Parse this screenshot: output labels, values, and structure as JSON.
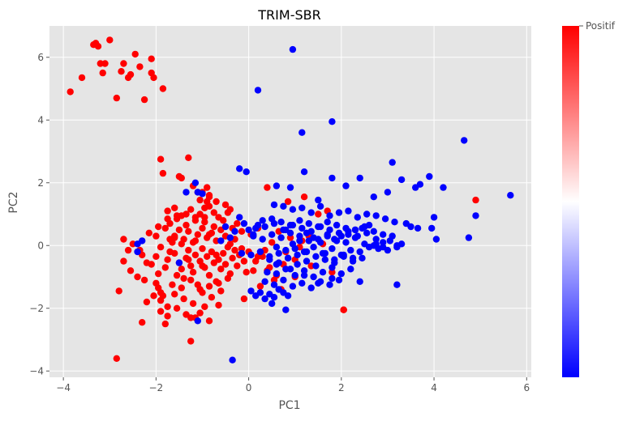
{
  "chart_data": {
    "type": "scatter",
    "title": "TRIM-SBR",
    "xlabel": "PC1",
    "ylabel": "PC2",
    "xlim": [
      -4.3,
      6.1
    ],
    "ylim": [
      -4.2,
      7.0
    ],
    "xticks": [
      -4,
      -2,
      0,
      2,
      4,
      6
    ],
    "yticks": [
      -4,
      -2,
      0,
      2,
      4,
      6
    ],
    "grid": true,
    "colors": {
      "positive": "#ff0000",
      "negative": "#0000ff"
    },
    "colorbar": {
      "label": "Positif",
      "position": "right"
    },
    "series": [
      {
        "color": "#ff0000",
        "x": [
          -3.85,
          -3.6,
          -3.35,
          -3.3,
          -3.25,
          -3.2,
          -3.1,
          -3.15,
          -3.0,
          -2.85,
          -2.75,
          -2.7,
          -2.6,
          -2.55,
          -2.45,
          -2.35,
          -2.25,
          -2.1,
          -2.1,
          -2.05,
          -1.85,
          -2.85,
          -2.3,
          -1.9,
          -1.85,
          -1.8,
          -1.5,
          -1.45,
          -1.3,
          -1.2,
          -1.25,
          -1.1,
          -0.9,
          -0.85,
          -0.7,
          -0.5,
          -0.4,
          0.4,
          0.85,
          1.0,
          1.2,
          1.5,
          1.7,
          2.05,
          2.05,
          4.9,
          1.8,
          -1.0,
          -0.85,
          -0.9,
          -1.05,
          -0.95,
          -2.6,
          -2.7,
          -2.55,
          -2.8,
          -2.4,
          -2.3,
          -2.2,
          -2.1,
          -2.0,
          -1.95,
          -2.25,
          -2.0,
          -1.95,
          -1.9,
          -1.85,
          -1.8,
          -1.75,
          -1.7,
          -1.65,
          -1.6,
          -1.55,
          -1.5,
          -1.45,
          -1.4,
          -1.35,
          -1.3,
          -1.25,
          -1.2,
          -1.15,
          -1.1,
          -1.05,
          -1.0,
          -0.95,
          -0.9,
          -0.85,
          -0.8,
          -0.75,
          -0.7,
          -0.65,
          -0.6,
          -0.55,
          -0.5,
          -0.45,
          -0.4,
          -0.35,
          -0.3,
          -0.25,
          -0.2,
          -0.15,
          -0.1,
          0.0,
          0.1,
          0.2,
          -1.6,
          -1.5,
          -1.4,
          -1.3,
          -1.2,
          -1.1,
          -1.0,
          -0.9,
          -0.8,
          -0.7,
          -0.6,
          -0.5,
          -0.4,
          -0.3,
          -1.7,
          -1.55,
          -1.35,
          -1.15,
          -0.95,
          -0.75,
          -0.55,
          -0.35,
          -0.15,
          -1.75,
          -1.6,
          -1.45,
          -1.25,
          -1.05,
          -0.85,
          -0.65,
          -0.45,
          -0.25,
          -2.0,
          -1.9,
          -1.8,
          -1.7,
          -1.6,
          -1.45,
          -1.3,
          -1.15,
          -1.0,
          -0.85,
          -0.7,
          -2.2,
          -2.05,
          -1.9,
          -1.75,
          -1.6,
          -1.4,
          -1.2,
          -1.0,
          -0.8,
          -0.6,
          -1.9,
          -1.75,
          -1.55,
          -1.35,
          -1.15,
          -0.95,
          -2.7,
          -2.5,
          -2.35,
          -2.15,
          -1.95,
          -1.75,
          -1.65,
          -1.45,
          -1.25,
          -1.05,
          -0.85,
          -0.65,
          -0.45,
          -1.55,
          -1.35,
          -1.15,
          -0.95,
          -0.75,
          -1.25,
          -1.05,
          -0.85,
          -0.65,
          0.3,
          0.5,
          0.65,
          0.75,
          0.9,
          1.1,
          1.3,
          1.6,
          0.4,
          0.55,
          0.7,
          0.2,
          0.35,
          0.15,
          0.05,
          -0.1,
          -0.05,
          0.25,
          0.45,
          0.6,
          0.8,
          1.0,
          1.15,
          1.35
        ],
        "y": [
          4.9,
          5.35,
          6.4,
          6.45,
          6.35,
          5.8,
          5.8,
          5.5,
          6.55,
          4.7,
          5.55,
          5.8,
          5.35,
          5.45,
          6.1,
          5.7,
          4.65,
          5.95,
          5.5,
          5.35,
          5.0,
          -3.6,
          -2.45,
          2.75,
          2.3,
          -2.5,
          2.2,
          2.15,
          2.8,
          1.9,
          -3.05,
          1.7,
          1.85,
          1.6,
          1.4,
          1.3,
          1.15,
          1.85,
          1.4,
          -1.0,
          1.55,
          1.0,
          1.1,
          -2.05,
          -2.05,
          1.45,
          -0.85,
          1.7,
          1.55,
          1.4,
          1.45,
          1.2,
          -0.15,
          -0.5,
          -0.8,
          -1.45,
          -1.0,
          -0.3,
          -0.55,
          -0.6,
          -0.35,
          -0.9,
          -1.1,
          -1.2,
          -1.35,
          -1.5,
          -1.6,
          -0.7,
          -0.45,
          -0.2,
          0.1,
          0.25,
          -0.95,
          -0.55,
          -0.75,
          -1.05,
          -0.4,
          -0.15,
          -0.65,
          -0.85,
          -0.3,
          -1.25,
          -0.5,
          -0.1,
          -0.7,
          -0.35,
          -0.95,
          -0.2,
          -0.55,
          -1.15,
          -0.45,
          -0.75,
          -0.25,
          -0.6,
          -0.05,
          -0.9,
          -0.4,
          -0.15,
          -0.65,
          -0.3,
          -0.1,
          -0.5,
          -0.2,
          -0.8,
          -0.35,
          0.3,
          0.5,
          0.2,
          0.45,
          0.1,
          0.35,
          0.55,
          0.25,
          0.4,
          0.15,
          0.5,
          0.3,
          0.05,
          0.2,
          0.7,
          0.85,
          0.65,
          0.9,
          0.75,
          0.6,
          0.8,
          0.55,
          0.45,
          1.1,
          1.2,
          0.95,
          1.15,
          1.0,
          1.25,
          0.9,
          1.05,
          0.7,
          0.3,
          -0.05,
          0.55,
          0.2,
          -0.25,
          0.05,
          -0.45,
          0.15,
          -0.65,
          0.35,
          -0.3,
          -1.8,
          -1.6,
          -1.75,
          -1.95,
          -1.55,
          -1.7,
          -1.85,
          -1.5,
          -1.65,
          -1.45,
          -2.1,
          -2.25,
          -2.0,
          -2.2,
          -2.3,
          -1.95,
          0.2,
          0.05,
          -0.15,
          0.4,
          0.6,
          0.85,
          -1.25,
          -1.35,
          -1.1,
          -1.4,
          -1.3,
          -1.2,
          -1.05,
          0.95,
          1.0,
          0.8,
          0.9,
          1.05,
          -2.3,
          -2.15,
          -2.4,
          -1.9,
          -0.35,
          0.1,
          0.45,
          -0.6,
          0.25,
          -0.05,
          0.3,
          0.05,
          -0.8,
          -1.1,
          -1.4,
          0.55,
          -0.15,
          -0.5,
          0.35,
          -1.7,
          -0.85,
          -1.3,
          -0.7,
          -0.95,
          -0.2,
          -0.45,
          0.15,
          -0.65
        ]
      },
      {
        "color": "#0000ff",
        "x": [
          0.95,
          0.2,
          1.15,
          1.8,
          3.1,
          4.65,
          5.65,
          4.9,
          4.75,
          4.05,
          4.0,
          3.95,
          3.7,
          3.5,
          3.3,
          3.2,
          3.05,
          2.9,
          2.75,
          2.6,
          2.45,
          2.3,
          2.15,
          2.0,
          1.85,
          1.7,
          1.55,
          1.4,
          1.25,
          1.1,
          0.95,
          0.8,
          -0.35,
          -0.2,
          -0.05,
          -1.0,
          -1.15,
          -1.1,
          -1.35,
          -2.4,
          -2.4,
          -2.3,
          -1.5,
          -1.1,
          0.6,
          0.9,
          1.2,
          1.5,
          1.8,
          2.1,
          2.4,
          2.7,
          3.0,
          3.3,
          3.6,
          3.9,
          4.2,
          0.55,
          0.75,
          0.95,
          1.15,
          1.35,
          1.55,
          1.75,
          1.95,
          2.15,
          2.35,
          2.55,
          2.75,
          2.95,
          3.15,
          3.4,
          3.65,
          0.5,
          0.7,
          0.9,
          1.1,
          1.3,
          1.5,
          1.7,
          1.9,
          2.1,
          2.3,
          2.5,
          2.7,
          2.9,
          3.1,
          0.6,
          0.8,
          1.0,
          1.2,
          1.4,
          1.6,
          1.8,
          2.0,
          2.2,
          2.4,
          2.6,
          2.8,
          3.0,
          3.2,
          0.45,
          0.65,
          0.85,
          1.05,
          1.25,
          1.45,
          1.65,
          1.85,
          2.05,
          2.25,
          2.45,
          0.4,
          0.6,
          0.8,
          1.0,
          1.2,
          1.4,
          1.6,
          1.8,
          2.0,
          2.2,
          0.35,
          0.55,
          0.75,
          0.95,
          1.15,
          1.35,
          1.55,
          1.75,
          1.95,
          -0.2,
          -0.1,
          0.0,
          0.1,
          0.2,
          0.3,
          -0.3,
          -0.4,
          -0.5,
          -0.6,
          0.05,
          0.15,
          0.25,
          0.35,
          0.45,
          0.55,
          0.65,
          0.75,
          0.85,
          0.1,
          0.3,
          0.5,
          0.7,
          0.9,
          1.1,
          1.3,
          1.5,
          1.7,
          1.9,
          2.1,
          2.3,
          2.5,
          2.7,
          2.9,
          -0.15,
          0.05,
          0.25,
          0.45,
          0.65,
          0.85,
          1.05,
          1.25,
          1.45,
          1.65,
          1.85,
          2.05,
          2.25,
          0.15,
          0.35,
          0.55,
          0.75,
          0.95,
          1.15,
          1.35,
          1.55,
          1.75,
          1.95,
          2.15,
          2.35,
          2.55,
          2.75,
          0.6,
          0.9,
          1.2,
          1.5,
          1.8,
          2.4,
          3.2,
          0.5,
          0.8
        ],
        "y": [
          6.25,
          4.95,
          3.6,
          3.95,
          2.65,
          3.35,
          1.6,
          0.95,
          0.25,
          0.2,
          0.9,
          0.55,
          1.95,
          0.6,
          0.05,
          0.0,
          0.15,
          0.1,
          0.05,
          0.65,
          0.55,
          0.5,
          0.45,
          0.3,
          0.2,
          0.35,
          0.1,
          0.25,
          0.4,
          0.15,
          0.05,
          0.5,
          -3.65,
          2.45,
          2.35,
          1.65,
          2.0,
          1.7,
          1.7,
          0.05,
          -0.2,
          0.15,
          -0.55,
          -2.4,
          1.9,
          1.85,
          2.35,
          1.45,
          2.15,
          1.9,
          2.15,
          1.55,
          1.7,
          2.1,
          1.85,
          2.2,
          1.85,
          1.3,
          1.25,
          1.15,
          1.2,
          1.05,
          1.25,
          0.95,
          1.05,
          1.1,
          0.9,
          1.0,
          0.95,
          0.85,
          0.75,
          0.7,
          0.55,
          0.85,
          0.75,
          0.65,
          0.8,
          0.7,
          0.6,
          0.75,
          0.65,
          0.55,
          0.5,
          0.6,
          0.45,
          0.35,
          0.3,
          -0.05,
          -0.15,
          -0.1,
          -0.2,
          -0.05,
          -0.25,
          -0.1,
          -0.3,
          -0.15,
          -0.2,
          -0.05,
          -0.1,
          -0.15,
          -0.05,
          -0.45,
          -0.55,
          -0.4,
          -0.6,
          -0.5,
          -0.65,
          -0.45,
          -0.55,
          -0.35,
          -0.5,
          -0.4,
          -0.85,
          -0.9,
          -0.75,
          -0.95,
          -0.8,
          -1.0,
          -0.85,
          -0.7,
          -0.9,
          -0.75,
          -1.15,
          -1.25,
          -1.1,
          -1.3,
          -1.2,
          -1.35,
          -1.15,
          -1.25,
          -1.1,
          0.9,
          0.7,
          0.5,
          0.35,
          0.65,
          0.8,
          0.45,
          0.25,
          0.6,
          0.15,
          -1.45,
          -1.6,
          -1.5,
          -1.7,
          -1.55,
          -1.65,
          -1.4,
          -1.5,
          -1.6,
          0.3,
          0.2,
          0.35,
          0.25,
          0.4,
          0.3,
          0.15,
          0.2,
          0.3,
          0.15,
          0.1,
          0.25,
          0.05,
          0.0,
          -0.05,
          -0.25,
          -0.3,
          -0.2,
          -0.35,
          -0.25,
          -0.4,
          -0.3,
          -0.2,
          -0.35,
          -0.25,
          -0.45,
          -0.3,
          -0.4,
          0.55,
          0.6,
          0.7,
          0.5,
          0.65,
          0.55,
          0.45,
          0.6,
          0.5,
          0.4,
          0.35,
          0.3,
          0.4,
          0.2,
          -0.6,
          -0.75,
          -0.95,
          -1.2,
          -1.05,
          -1.15,
          -1.25,
          -1.85,
          -2.05
        ]
      }
    ]
  }
}
